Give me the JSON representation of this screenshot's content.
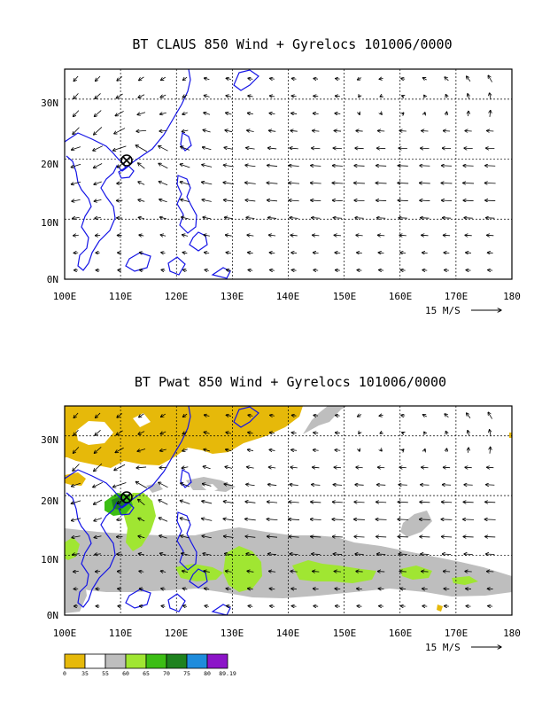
{
  "panels": [
    {
      "title": "BT CLAUS 850 Wind + Gyrelocs 101006/0000",
      "x_ticks": [
        "100E",
        "110E",
        "120E",
        "130E",
        "140E",
        "150E",
        "160E",
        "170E",
        "180"
      ],
      "y_ticks": [
        "0N",
        "10N",
        "20N",
        "30N"
      ],
      "scale_label": "15 M/S",
      "marker": {
        "symbol": "circled-x",
        "lon": 111,
        "lat": 20.7
      },
      "fill": null
    },
    {
      "title": "BT Pwat 850 Wind + Gyrelocs 101006/0000",
      "x_ticks": [
        "100E",
        "110E",
        "120E",
        "130E",
        "140E",
        "150E",
        "160E",
        "170E",
        "180"
      ],
      "y_ticks": [
        "0N",
        "10N",
        "20N",
        "30N"
      ],
      "scale_label": "15 M/S",
      "marker": {
        "symbol": "circled-x",
        "lon": 111,
        "lat": 20.7
      },
      "fill": "precipitable-water"
    }
  ],
  "colorbar": {
    "labels": [
      "0",
      "35",
      "55",
      "60",
      "65",
      "70",
      "75",
      "80",
      "89.19"
    ],
    "colors": [
      "#e6b90a",
      "#ffffff",
      "#bebebe",
      "#a0e632",
      "#3cbe14",
      "#1e821e",
      "#1e8cdc",
      "#8c14c8"
    ]
  },
  "map_style": {
    "coast_color": "#1414e6",
    "grid_color": "#000000",
    "grid_dashed": true,
    "domain": {
      "lon": [
        100,
        180
      ],
      "lat": [
        0,
        35
      ]
    }
  },
  "chart_data": [
    {
      "type": "vector-map",
      "title": "BT CLAUS 850 Wind + Gyrelocs 101006/0000",
      "xlim": [
        100,
        180
      ],
      "ylim": [
        0,
        35
      ],
      "reference_vector_ms": 15
    },
    {
      "type": "vector-map",
      "title": "BT Pwat 850 Wind + Gyrelocs 101006/0000",
      "xlim": [
        100,
        180
      ],
      "ylim": [
        0,
        35
      ],
      "reference_vector_ms": 15,
      "colorbar_levels": [
        0,
        35,
        55,
        60,
        65,
        70,
        75,
        80,
        89.19
      ]
    }
  ]
}
